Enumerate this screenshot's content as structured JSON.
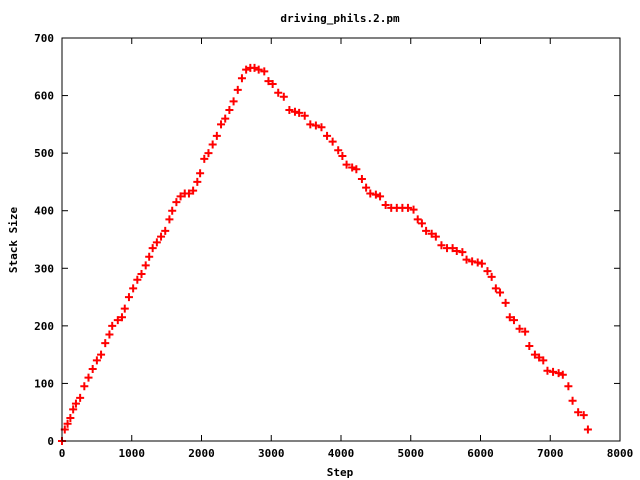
{
  "chart_data": {
    "type": "scatter",
    "title": "driving_phils.2.pm",
    "xlabel": "Step",
    "ylabel": "Stack Size",
    "xlim": [
      0,
      8000
    ],
    "ylim": [
      0,
      700
    ],
    "xticks": [
      0,
      1000,
      2000,
      3000,
      4000,
      5000,
      6000,
      7000,
      8000
    ],
    "yticks": [
      0,
      100,
      200,
      300,
      400,
      500,
      600,
      700
    ],
    "grid": false,
    "legend": "none",
    "marker": "plus",
    "color": "#ff0000",
    "series": [
      {
        "points": [
          [
            0,
            0
          ],
          [
            40,
            20
          ],
          [
            80,
            30
          ],
          [
            120,
            40
          ],
          [
            160,
            55
          ],
          [
            200,
            65
          ],
          [
            260,
            75
          ],
          [
            320,
            95
          ],
          [
            380,
            110
          ],
          [
            440,
            125
          ],
          [
            500,
            140
          ],
          [
            560,
            150
          ],
          [
            620,
            170
          ],
          [
            680,
            185
          ],
          [
            720,
            200
          ],
          [
            800,
            210
          ],
          [
            860,
            215
          ],
          [
            900,
            230
          ],
          [
            960,
            250
          ],
          [
            1020,
            265
          ],
          [
            1080,
            280
          ],
          [
            1140,
            290
          ],
          [
            1200,
            305
          ],
          [
            1250,
            320
          ],
          [
            1300,
            335
          ],
          [
            1360,
            345
          ],
          [
            1420,
            355
          ],
          [
            1480,
            365
          ],
          [
            1540,
            385
          ],
          [
            1580,
            400
          ],
          [
            1640,
            415
          ],
          [
            1700,
            425
          ],
          [
            1760,
            430
          ],
          [
            1820,
            430
          ],
          [
            1880,
            435
          ],
          [
            1940,
            450
          ],
          [
            1980,
            465
          ],
          [
            2040,
            490
          ],
          [
            2100,
            500
          ],
          [
            2160,
            515
          ],
          [
            2220,
            530
          ],
          [
            2280,
            550
          ],
          [
            2340,
            560
          ],
          [
            2400,
            575
          ],
          [
            2460,
            590
          ],
          [
            2520,
            610
          ],
          [
            2580,
            630
          ],
          [
            2640,
            645
          ],
          [
            2700,
            648
          ],
          [
            2760,
            648
          ],
          [
            2820,
            645
          ],
          [
            2900,
            642
          ],
          [
            2960,
            625
          ],
          [
            3020,
            620
          ],
          [
            3100,
            605
          ],
          [
            3180,
            598
          ],
          [
            3260,
            575
          ],
          [
            3340,
            572
          ],
          [
            3400,
            570
          ],
          [
            3480,
            565
          ],
          [
            3560,
            550
          ],
          [
            3640,
            548
          ],
          [
            3720,
            545
          ],
          [
            3800,
            530
          ],
          [
            3880,
            520
          ],
          [
            3960,
            505
          ],
          [
            4020,
            495
          ],
          [
            4080,
            480
          ],
          [
            4160,
            475
          ],
          [
            4220,
            472
          ],
          [
            4300,
            455
          ],
          [
            4360,
            440
          ],
          [
            4420,
            430
          ],
          [
            4500,
            428
          ],
          [
            4560,
            425
          ],
          [
            4640,
            410
          ],
          [
            4720,
            405
          ],
          [
            4800,
            405
          ],
          [
            4880,
            405
          ],
          [
            4960,
            405
          ],
          [
            5040,
            402
          ],
          [
            5100,
            385
          ],
          [
            5160,
            378
          ],
          [
            5220,
            365
          ],
          [
            5300,
            360
          ],
          [
            5360,
            355
          ],
          [
            5440,
            340
          ],
          [
            5520,
            335
          ],
          [
            5600,
            335
          ],
          [
            5660,
            330
          ],
          [
            5740,
            328
          ],
          [
            5800,
            315
          ],
          [
            5880,
            312
          ],
          [
            5960,
            310
          ],
          [
            6020,
            308
          ],
          [
            6100,
            295
          ],
          [
            6160,
            285
          ],
          [
            6220,
            265
          ],
          [
            6280,
            258
          ],
          [
            6360,
            240
          ],
          [
            6420,
            215
          ],
          [
            6480,
            210
          ],
          [
            6560,
            195
          ],
          [
            6640,
            190
          ],
          [
            6700,
            165
          ],
          [
            6780,
            150
          ],
          [
            6840,
            145
          ],
          [
            6900,
            140
          ],
          [
            6960,
            122
          ],
          [
            7040,
            120
          ],
          [
            7120,
            118
          ],
          [
            7180,
            115
          ],
          [
            7260,
            95
          ],
          [
            7320,
            70
          ],
          [
            7400,
            50
          ],
          [
            7480,
            45
          ],
          [
            7540,
            20
          ]
        ]
      }
    ]
  }
}
